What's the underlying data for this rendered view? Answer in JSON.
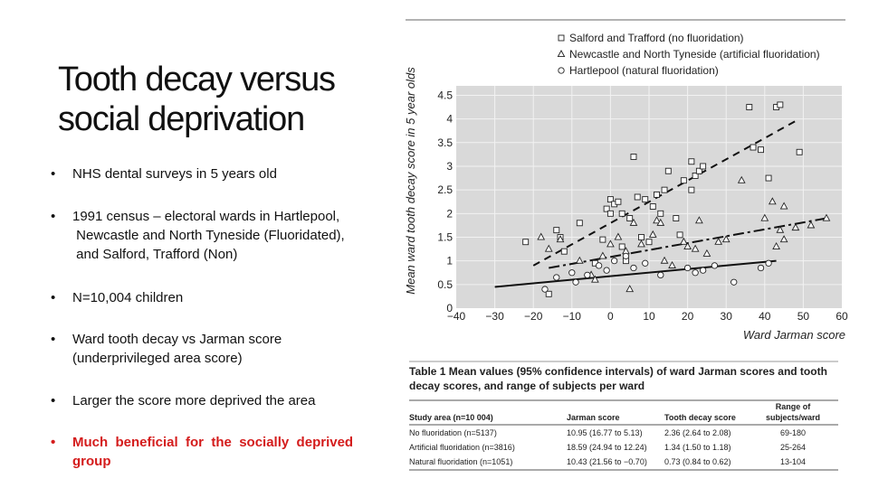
{
  "title": "Tooth decay versus social deprivation",
  "bullets": [
    {
      "text": "NHS dental surveys in 5 years old"
    },
    {
      "text": "1991 census – electoral wards in Hartlepool,\n Newcastle and North Tyneside (Fluoridated),\n and Salford, Trafford (Non)"
    },
    {
      "text": "N=10,004 children"
    },
    {
      "text": "Ward tooth decay vs Jarman score\n(underprivileged area score)"
    },
    {
      "text": "Larger the score more deprived the area"
    },
    {
      "text": "Much  beneficial  for  the  socially  deprived\ngroup"
    }
  ],
  "colors": {
    "highlight": "#d41c1c",
    "plot_bg": "#d9d9d9"
  },
  "chart_data": {
    "type": "scatter",
    "xlabel": "Ward Jarman score",
    "ylabel": "Mean ward tooth decay score in 5 year olds",
    "xlim": [
      -40,
      60
    ],
    "ylim": [
      0,
      4.7
    ],
    "xticks": [
      -40,
      -30,
      -20,
      -10,
      0,
      10,
      20,
      30,
      40,
      50,
      60
    ],
    "yticks": [
      0,
      0.5,
      1,
      1.5,
      2,
      2.5,
      3,
      3.5,
      4,
      4.5
    ],
    "series": [
      {
        "name": "Salford and Trafford (no fluoridation)",
        "marker": "square",
        "line": "dashed",
        "fit": [
          [
            -20,
            0.9
          ],
          [
            49,
            4.0
          ]
        ],
        "points": [
          [
            -22,
            1.4
          ],
          [
            -14,
            1.65
          ],
          [
            -13,
            1.5
          ],
          [
            -12,
            1.2
          ],
          [
            -8,
            1.8
          ],
          [
            -4,
            0.95
          ],
          [
            -2,
            1.45
          ],
          [
            -1,
            2.1
          ],
          [
            0,
            2.3
          ],
          [
            0,
            2.0
          ],
          [
            1,
            2.2
          ],
          [
            2,
            2.25
          ],
          [
            3,
            2.0
          ],
          [
            3,
            1.3
          ],
          [
            4,
            1.0
          ],
          [
            5,
            1.9
          ],
          [
            6,
            3.2
          ],
          [
            7,
            2.35
          ],
          [
            8,
            1.5
          ],
          [
            9,
            2.3
          ],
          [
            10,
            1.4
          ],
          [
            11,
            2.15
          ],
          [
            12,
            2.4
          ],
          [
            13,
            2.0
          ],
          [
            14,
            2.5
          ],
          [
            15,
            2.9
          ],
          [
            17,
            1.9
          ],
          [
            18,
            1.55
          ],
          [
            19,
            2.7
          ],
          [
            21,
            3.1
          ],
          [
            21,
            2.5
          ],
          [
            22,
            2.8
          ],
          [
            23,
            2.9
          ],
          [
            24,
            3.0
          ],
          [
            36,
            4.25
          ],
          [
            37,
            3.4
          ],
          [
            39,
            3.35
          ],
          [
            41,
            2.75
          ],
          [
            43,
            4.25
          ],
          [
            44,
            4.3
          ],
          [
            49,
            3.3
          ],
          [
            -16,
            0.3
          ]
        ],
        "fit_note": "regression line"
      },
      {
        "name": "Newcastle and North Tyneside (artificial fluoridation)",
        "marker": "triangle",
        "line": "dashdot",
        "fit": [
          [
            -16,
            0.85
          ],
          [
            56,
            1.9
          ]
        ],
        "points": [
          [
            -18,
            1.5
          ],
          [
            -16,
            1.25
          ],
          [
            -13,
            1.45
          ],
          [
            -8,
            1.0
          ],
          [
            -5,
            0.7
          ],
          [
            -4,
            0.6
          ],
          [
            -2,
            1.1
          ],
          [
            0,
            1.35
          ],
          [
            2,
            1.5
          ],
          [
            4,
            1.2
          ],
          [
            5,
            0.4
          ],
          [
            6,
            1.8
          ],
          [
            8,
            1.35
          ],
          [
            11,
            1.55
          ],
          [
            12,
            1.85
          ],
          [
            13,
            1.8
          ],
          [
            14,
            1.0
          ],
          [
            16,
            0.9
          ],
          [
            19,
            1.4
          ],
          [
            20,
            1.3
          ],
          [
            22,
            1.25
          ],
          [
            23,
            1.85
          ],
          [
            25,
            1.15
          ],
          [
            28,
            1.4
          ],
          [
            30,
            1.45
          ],
          [
            34,
            2.7
          ],
          [
            40,
            1.9
          ],
          [
            42,
            2.25
          ],
          [
            43,
            1.3
          ],
          [
            44,
            1.65
          ],
          [
            45,
            2.15
          ],
          [
            48,
            1.7
          ],
          [
            52,
            1.75
          ],
          [
            56,
            1.9
          ],
          [
            45,
            1.45
          ]
        ]
      },
      {
        "name": "Hartlepool (natural fluoridation)",
        "marker": "circle",
        "line": "solid",
        "fit": [
          [
            -30,
            0.45
          ],
          [
            43,
            1.0
          ]
        ],
        "points": [
          [
            -17,
            0.4
          ],
          [
            -14,
            0.65
          ],
          [
            -10,
            0.75
          ],
          [
            -9,
            0.55
          ],
          [
            -6,
            0.7
          ],
          [
            -3,
            0.9
          ],
          [
            -1,
            0.8
          ],
          [
            1,
            1.0
          ],
          [
            4,
            1.1
          ],
          [
            6,
            0.85
          ],
          [
            9,
            0.95
          ],
          [
            13,
            0.7
          ],
          [
            20,
            0.85
          ],
          [
            22,
            0.75
          ],
          [
            24,
            0.8
          ],
          [
            27,
            0.9
          ],
          [
            32,
            0.55
          ],
          [
            39,
            0.85
          ],
          [
            41,
            0.95
          ]
        ]
      }
    ]
  },
  "table": {
    "caption": "Table 1  Mean values (95% confidence intervals) of ward Jarman scores and tooth decay scores, and range of subjects per ward",
    "headers": [
      "Study area (n=10 004)",
      "Jarman score",
      "Tooth decay score",
      "Range of subjects/ward"
    ],
    "rows": [
      [
        "No fluoridation (n=5137)",
        "10.95 (16.77 to 5.13)",
        "2.36 (2.64 to 2.08)",
        "69-180"
      ],
      [
        "Artificial fluoridation (n=3816)",
        "18.59 (24.94 to 12.24)",
        "1.34 (1.50 to 1.18)",
        "25-264"
      ],
      [
        "Natural fluoridation (n=1051)",
        "10.43 (21.56 to −0.70)",
        "0.73 (0.84 to 0.62)",
        "13-104"
      ]
    ]
  }
}
